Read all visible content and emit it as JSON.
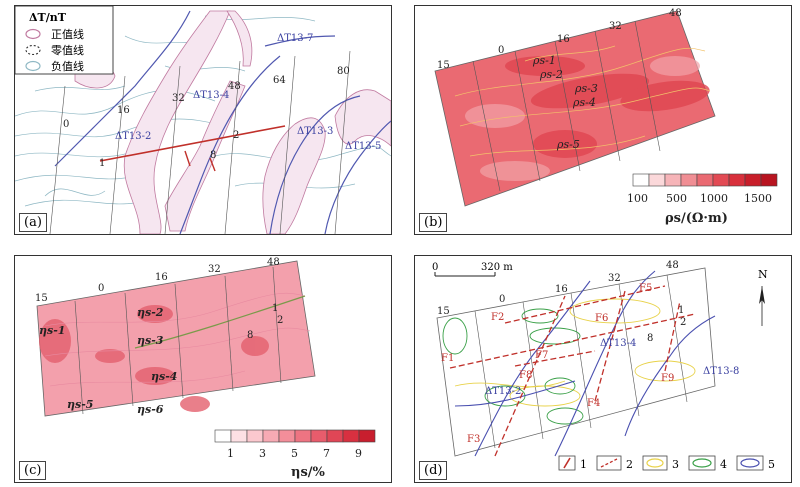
{
  "panel_a": {
    "label": "(a)",
    "legend_title": "ΔT/nT",
    "legend_items": [
      "正值线",
      "零值线",
      "负值线"
    ],
    "anomalies": [
      "ΔT13-7",
      "ΔT13-4",
      "ΔT13-2",
      "ΔT13-3",
      "ΔT13-5"
    ],
    "line_numbers": [
      "0",
      "16",
      "32",
      "48",
      "64",
      "80"
    ],
    "points": [
      "1",
      "2",
      "8"
    ]
  },
  "panel_b": {
    "label": "(b)",
    "line_numbers": [
      "15",
      "0",
      "16",
      "32",
      "48"
    ],
    "zones": [
      "ρs-1",
      "ρs-2",
      "ρs-3",
      "ρs-4",
      "ρs-5"
    ],
    "colorbar_ticks": [
      "100",
      "500",
      "1000",
      "1500"
    ],
    "colorbar_label": "ρs/(Ω·m)"
  },
  "panel_c": {
    "label": "(c)",
    "line_numbers": [
      "15",
      "0",
      "16",
      "32",
      "48"
    ],
    "zones": [
      "ηs-1",
      "ηs-2",
      "ηs-3",
      "ηs-4",
      "ηs-5",
      "ηs-6"
    ],
    "points": [
      "1",
      "2",
      "8"
    ],
    "colorbar_ticks": [
      "1",
      "3",
      "5",
      "7",
      "9"
    ],
    "colorbar_label": "ηs/%"
  },
  "panel_d": {
    "label": "(d)",
    "scale_start": "0",
    "scale_end": "320 m",
    "north": "N",
    "line_numbers": [
      "15",
      "0",
      "16",
      "32",
      "48"
    ],
    "faults": [
      "F1",
      "F2",
      "F3",
      "F4",
      "F5",
      "F6",
      "F7",
      "F8",
      "F9"
    ],
    "anomalies": [
      "ΔT13-4",
      "ΔT13-2",
      "ΔT13-8"
    ],
    "points": [
      "1",
      "2",
      "8"
    ],
    "legend_numbers": [
      "1",
      "2",
      "3",
      "4",
      "5"
    ]
  }
}
